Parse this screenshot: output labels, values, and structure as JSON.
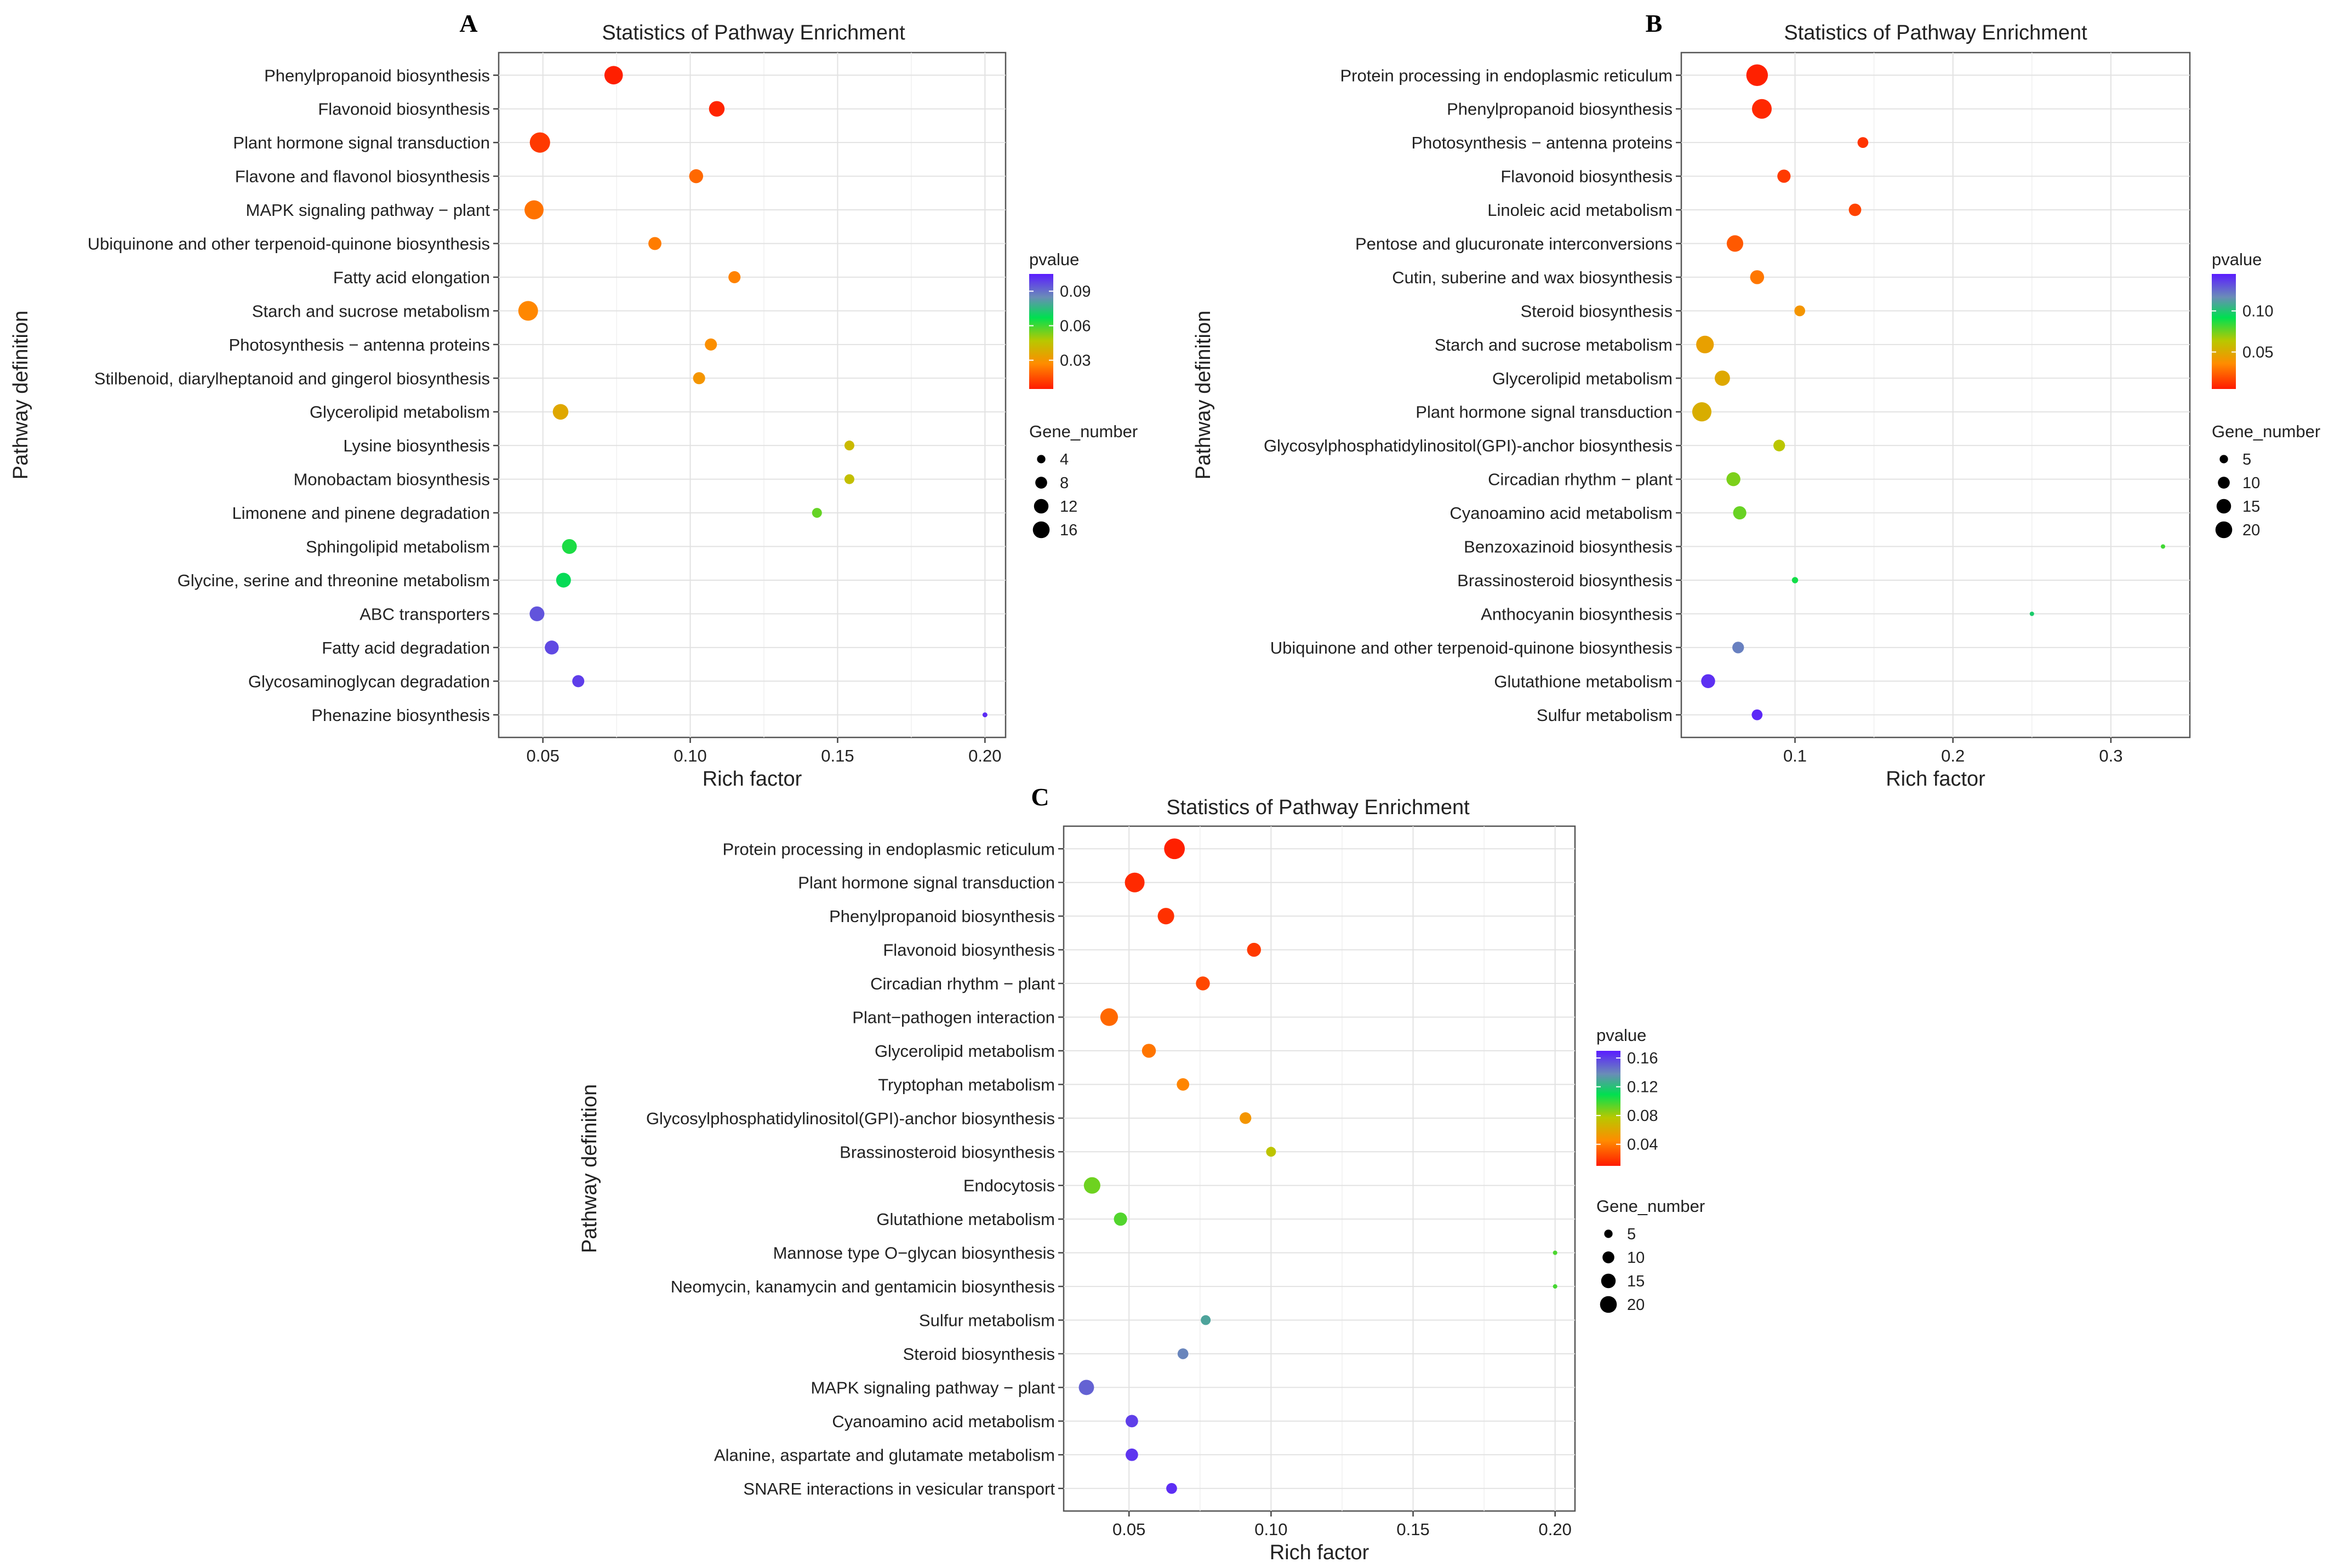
{
  "chart_data": [
    {
      "type": "scatter",
      "panel": "A",
      "title": "Statistics of Pathway Enrichment",
      "xlabel": "Rich factor",
      "ylabel": "Pathway definition",
      "xlim": [
        0.035,
        0.207
      ],
      "xticks": [
        0.05,
        0.1,
        0.15,
        0.2
      ],
      "xtick_labels": [
        "0.05",
        "0.10",
        "0.15",
        "0.20"
      ],
      "color_legend": {
        "title": "pvalue",
        "min": 0.005,
        "max": 0.105,
        "ticks": [
          0.03,
          0.06,
          0.09
        ],
        "tick_labels": [
          "0.03",
          "0.06",
          "0.09"
        ]
      },
      "size_legend": {
        "title": "Gene_number",
        "values": [
          4,
          8,
          12,
          16
        ],
        "labels": [
          "4",
          "8",
          "12",
          "16"
        ]
      },
      "pathways": [
        "Phenylpropanoid biosynthesis",
        "Flavonoid biosynthesis",
        "Plant hormone signal transduction",
        "Flavone and flavonol biosynthesis",
        "MAPK signaling pathway − plant",
        "Ubiquinone and other terpenoid-quinone biosynthesis",
        "Fatty acid elongation",
        "Starch and sucrose metabolism",
        "Photosynthesis − antenna proteins",
        "Stilbenoid, diarylheptanoid and gingerol biosynthesis",
        "Glycerolipid metabolism",
        "Lysine biosynthesis",
        "Monobactam biosynthesis",
        "Limonene and pinene degradation",
        "Sphingolipid metabolism",
        "Glycine, serine and threonine metabolism",
        "ABC transporters",
        "Fatty acid degradation",
        "Glycosaminoglycan degradation",
        "Phenazine biosynthesis"
      ],
      "rich_factor": [
        0.074,
        0.109,
        0.049,
        0.102,
        0.047,
        0.088,
        0.115,
        0.045,
        0.107,
        0.103,
        0.056,
        0.154,
        0.154,
        0.143,
        0.059,
        0.057,
        0.048,
        0.053,
        0.062,
        0.2
      ],
      "pvalue": [
        0.006,
        0.007,
        0.011,
        0.02,
        0.022,
        0.024,
        0.025,
        0.026,
        0.028,
        0.03,
        0.036,
        0.042,
        0.044,
        0.056,
        0.064,
        0.068,
        0.095,
        0.097,
        0.099,
        0.102
      ],
      "gene_number": [
        14,
        10,
        17,
        8,
        15,
        7,
        6,
        16,
        6,
        6,
        10,
        4,
        4,
        4,
        9,
        9,
        9,
        8,
        6,
        1
      ]
    },
    {
      "type": "scatter",
      "panel": "B",
      "title": "Statistics of Pathway Enrichment",
      "xlabel": "Rich factor",
      "ylabel": "Pathway definition",
      "xlim": [
        0.028,
        0.35
      ],
      "xticks": [
        0.1,
        0.2,
        0.3
      ],
      "xtick_labels": [
        "0.1",
        "0.2",
        "0.3"
      ],
      "color_legend": {
        "title": "pvalue",
        "min": 0.005,
        "max": 0.145,
        "ticks": [
          0.05,
          0.1
        ],
        "tick_labels": [
          "0.05",
          "0.10"
        ]
      },
      "size_legend": {
        "title": "Gene_number",
        "values": [
          5,
          10,
          15,
          20
        ],
        "labels": [
          "5",
          "10",
          "15",
          "20"
        ]
      },
      "pathways": [
        "Protein processing in endoplasmic reticulum",
        "Phenylpropanoid biosynthesis",
        "Photosynthesis − antenna proteins",
        "Flavonoid biosynthesis",
        "Linoleic acid metabolism",
        "Pentose and glucuronate interconversions",
        "Cutin, suberine and wax biosynthesis",
        "Steroid biosynthesis",
        "Starch and sucrose metabolism",
        "Glycerolipid metabolism",
        "Plant hormone signal transduction",
        "Glycosylphosphatidylinositol(GPI)-anchor biosynthesis",
        "Circadian rhythm − plant",
        "Cyanoamino acid metabolism",
        "Benzoxazinoid biosynthesis",
        "Brassinosteroid biosynthesis",
        "Anthocyanin biosynthesis",
        "Ubiquinone and other terpenoid-quinone biosynthesis",
        "Glutathione metabolism",
        "Sulfur metabolism"
      ],
      "rich_factor": [
        0.076,
        0.079,
        0.143,
        0.093,
        0.138,
        0.062,
        0.076,
        0.103,
        0.043,
        0.054,
        0.041,
        0.09,
        0.061,
        0.065,
        0.333,
        0.1,
        0.25,
        0.064,
        0.045,
        0.076
      ],
      "pvalue": [
        0.007,
        0.009,
        0.012,
        0.014,
        0.016,
        0.022,
        0.03,
        0.04,
        0.045,
        0.049,
        0.051,
        0.063,
        0.073,
        0.076,
        0.082,
        0.089,
        0.098,
        0.12,
        0.14,
        0.142
      ],
      "gene_number": [
        24,
        20,
        6,
        9,
        8,
        14,
        10,
        6,
        16,
        12,
        19,
        7,
        10,
        9,
        1,
        2,
        1,
        7,
        10,
        6
      ]
    },
    {
      "type": "scatter",
      "panel": "C",
      "title": "Statistics of Pathway Enrichment",
      "xlabel": "Rich factor",
      "ylabel": "Pathway definition",
      "xlim": [
        0.027,
        0.207
      ],
      "xticks": [
        0.05,
        0.1,
        0.15,
        0.2
      ],
      "xtick_labels": [
        "0.05",
        "0.10",
        "0.15",
        "0.20"
      ],
      "color_legend": {
        "title": "pvalue",
        "min": 0.01,
        "max": 0.17,
        "ticks": [
          0.04,
          0.08,
          0.12,
          0.16
        ],
        "tick_labels": [
          "0.04",
          "0.08",
          "0.12",
          "0.16"
        ]
      },
      "size_legend": {
        "title": "Gene_number",
        "values": [
          5,
          10,
          15,
          20
        ],
        "labels": [
          "5",
          "10",
          "15",
          "20"
        ]
      },
      "pathways": [
        "Protein processing in endoplasmic reticulum",
        "Plant hormone signal transduction",
        "Phenylpropanoid biosynthesis",
        "Flavonoid biosynthesis",
        "Circadian rhythm − plant",
        "Plant−pathogen interaction",
        "Glycerolipid metabolism",
        "Tryptophan metabolism",
        "Glycosylphosphatidylinositol(GPI)-anchor biosynthesis",
        "Brassinosteroid biosynthesis",
        "Endocytosis",
        "Glutathione metabolism",
        "Mannose type O−glycan biosynthesis",
        "Neomycin, kanamycin and gentamicin biosynthesis",
        "Sulfur metabolism",
        "Steroid biosynthesis",
        "MAPK signaling pathway − plant",
        "Cyanoamino acid metabolism",
        "Alanine, aspartate and glutamate metabolism",
        "SNARE interactions in vesicular transport"
      ],
      "rich_factor": [
        0.066,
        0.052,
        0.063,
        0.094,
        0.076,
        0.043,
        0.057,
        0.069,
        0.091,
        0.1,
        0.037,
        0.047,
        0.2,
        0.2,
        0.077,
        0.069,
        0.035,
        0.051,
        0.051,
        0.065
      ],
      "pvalue": [
        0.012,
        0.015,
        0.017,
        0.02,
        0.024,
        0.034,
        0.038,
        0.043,
        0.05,
        0.075,
        0.09,
        0.095,
        0.096,
        0.097,
        0.13,
        0.14,
        0.15,
        0.16,
        0.163,
        0.165
      ],
      "gene_number": [
        22,
        20,
        14,
        10,
        10,
        16,
        10,
        8,
        7,
        5,
        14,
        9,
        1,
        1,
        5,
        6,
        12,
        8,
        8,
        6
      ]
    }
  ]
}
